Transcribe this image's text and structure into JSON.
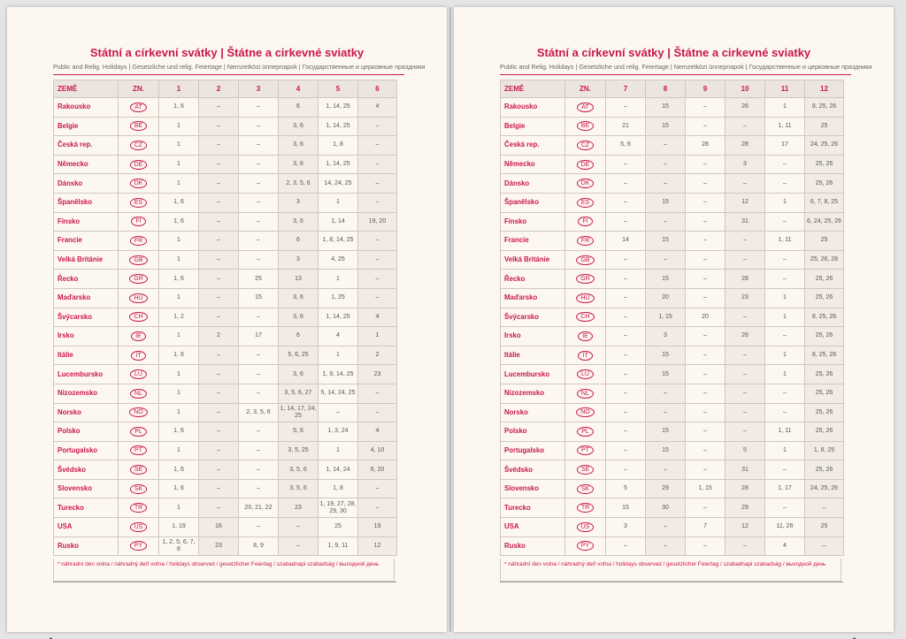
{
  "pages": [
    {
      "title": "Státní a církevní svátky | Štátne a cirkevné sviatky",
      "subtitle": "Public and Relig. Holidays | Gesetzliche und relig. Feiertage | Nemzetközi ünnepnapok | Государственные и церковные праздники",
      "table": {
        "header": [
          "ZEMĚ",
          "ZN.",
          "1",
          "2",
          "3",
          "4",
          "5",
          "6"
        ],
        "rows": [
          [
            "Rakousko",
            "AT",
            "1, 6",
            "–",
            "–",
            "6",
            "1, 14, 25",
            "4"
          ],
          [
            "Belgie",
            "BE",
            "1",
            "–",
            "–",
            "3, 6",
            "1, 14, 25",
            "–"
          ],
          [
            "Česká rep.",
            "CZ",
            "1",
            "–",
            "–",
            "3, 6",
            "1, 8",
            "–"
          ],
          [
            "Německo",
            "DE",
            "1",
            "–",
            "–",
            "3, 6",
            "1, 14, 25",
            "–"
          ],
          [
            "Dánsko",
            "DK",
            "1",
            "–",
            "–",
            "2, 3, 5, 6",
            "14, 24, 25",
            "–"
          ],
          [
            "Španělsko",
            "ES",
            "1, 6",
            "–",
            "–",
            "3",
            "1",
            "–"
          ],
          [
            "Finsko",
            "FI",
            "1, 6",
            "–",
            "–",
            "3, 6",
            "1, 14",
            "19, 20"
          ],
          [
            "Francie",
            "FR",
            "1",
            "–",
            "–",
            "6",
            "1, 8, 14, 25",
            "–"
          ],
          [
            "Velká Británie",
            "GB",
            "1",
            "–",
            "–",
            "3",
            "4, 25",
            "–"
          ],
          [
            "Řecko",
            "GR",
            "1, 6",
            "–",
            "25",
            "13",
            "1",
            "–"
          ],
          [
            "Maďarsko",
            "HU",
            "1",
            "–",
            "15",
            "3, 6",
            "1, 25",
            "–"
          ],
          [
            "Švýcarsko",
            "CH",
            "1, 2",
            "–",
            "–",
            "3, 6",
            "1, 14, 25",
            "4"
          ],
          [
            "Irsko",
            "IE",
            "1",
            "2",
            "17",
            "6",
            "4",
            "1"
          ],
          [
            "Itálie",
            "IT",
            "1, 6",
            "–",
            "–",
            "5, 6, 25",
            "1",
            "2"
          ],
          [
            "Lucembursko",
            "LU",
            "1",
            "–",
            "–",
            "3, 6",
            "1, 9, 14, 25",
            "23"
          ],
          [
            "Nizozemsko",
            "NL",
            "1",
            "–",
            "–",
            "3, 5, 6, 27",
            "5, 14, 24, 25",
            "–"
          ],
          [
            "Norsko",
            "NO",
            "1",
            "–",
            "2, 3, 5, 6",
            "1, 14, 17, 24, 25",
            "–",
            "–"
          ],
          [
            "Polsko",
            "PL",
            "1, 6",
            "–",
            "–",
            "5, 6",
            "1, 3, 24",
            "4"
          ],
          [
            "Portugalsko",
            "PT",
            "1",
            "–",
            "–",
            "3, 5, 25",
            "1",
            "4, 10"
          ],
          [
            "Švédsko",
            "SE",
            "1, 6",
            "–",
            "–",
            "3, 5, 6",
            "1, 14, 24",
            "6, 20"
          ],
          [
            "Slovensko",
            "SK",
            "1, 6",
            "–",
            "–",
            "3, 5, 6",
            "1, 8",
            "–"
          ],
          [
            "Turecko",
            "TR",
            "1",
            "–",
            "20, 21, 22",
            "23",
            "1, 19, 27, 28, 29, 30",
            "–"
          ],
          [
            "USA",
            "US",
            "1, 19",
            "16",
            "–",
            "–",
            "25",
            "19"
          ],
          [
            "Rusko",
            "PY",
            "1, 2, 5, 6, 7, 8",
            "23",
            "8, 9",
            "–",
            "1, 9, 11",
            "12"
          ]
        ]
      },
      "footnote": "* náhradní den volna / náhradný deň voľna / holidays observed / gesetzlicher Feiertag / szabadnapi szabadság / выходной день"
    },
    {
      "title": "Státní a církevní svátky | Štátne a cirkevné sviatky",
      "subtitle": "Public and Relig. Holidays | Gesetzliche und relig. Feiertage | Nemzetközi ünnepnapok | Государственные и церковные праздники",
      "table": {
        "header": [
          "ZEMĚ",
          "ZN.",
          "7",
          "8",
          "9",
          "10",
          "11",
          "12"
        ],
        "rows": [
          [
            "Rakousko",
            "AT",
            "–",
            "15",
            "–",
            "26",
            "1",
            "8, 25, 26"
          ],
          [
            "Belgie",
            "BE",
            "21",
            "15",
            "–",
            "–",
            "1, 11",
            "25"
          ],
          [
            "Česká rep.",
            "CZ",
            "5, 6",
            "–",
            "28",
            "28",
            "17",
            "24, 25, 26"
          ],
          [
            "Německo",
            "DE",
            "–",
            "–",
            "–",
            "3",
            "–",
            "25, 26"
          ],
          [
            "Dánsko",
            "DK",
            "–",
            "–",
            "–",
            "–",
            "–",
            "25, 26"
          ],
          [
            "Španělsko",
            "ES",
            "–",
            "15",
            "–",
            "12",
            "1",
            "6, 7, 8, 25"
          ],
          [
            "Finsko",
            "FI",
            "–",
            "–",
            "–",
            "31",
            "–",
            "6, 24, 25, 26"
          ],
          [
            "Francie",
            "FR",
            "14",
            "15",
            "–",
            "–",
            "1, 11",
            "25"
          ],
          [
            "Velká Británie",
            "GB",
            "–",
            "–",
            "–",
            "–",
            "–",
            "25, 26, 28"
          ],
          [
            "Řecko",
            "GR",
            "–",
            "15",
            "–",
            "28",
            "–",
            "25, 26"
          ],
          [
            "Maďarsko",
            "HU",
            "–",
            "20",
            "–",
            "23",
            "1",
            "25, 26"
          ],
          [
            "Švýcarsko",
            "CH",
            "–",
            "1, 15",
            "20",
            "–",
            "1",
            "8, 25, 26"
          ],
          [
            "Irsko",
            "IE",
            "–",
            "3",
            "–",
            "26",
            "–",
            "25, 26"
          ],
          [
            "Itálie",
            "IT",
            "–",
            "15",
            "–",
            "–",
            "1",
            "8, 25, 26"
          ],
          [
            "Lucembursko",
            "LU",
            "–",
            "15",
            "–",
            "–",
            "1",
            "25, 26"
          ],
          [
            "Nizozemsko",
            "NL",
            "–",
            "–",
            "–",
            "–",
            "–",
            "25, 26"
          ],
          [
            "Norsko",
            "NO",
            "–",
            "–",
            "–",
            "–",
            "–",
            "25, 26"
          ],
          [
            "Polsko",
            "PL",
            "–",
            "15",
            "–",
            "–",
            "1, 11",
            "25, 26"
          ],
          [
            "Portugalsko",
            "PT",
            "–",
            "15",
            "–",
            "5",
            "1",
            "1, 8, 25"
          ],
          [
            "Švédsko",
            "SE",
            "–",
            "–",
            "–",
            "31",
            "–",
            "25, 26"
          ],
          [
            "Slovensko",
            "SK",
            "5",
            "29",
            "1, 15",
            "28",
            "1, 17",
            "24, 25, 26"
          ],
          [
            "Turecko",
            "TR",
            "15",
            "30",
            "–",
            "29",
            "–",
            "–"
          ],
          [
            "USA",
            "US",
            "3",
            "–",
            "7",
            "12",
            "11, 26",
            "25"
          ],
          [
            "Rusko",
            "PY",
            "–",
            "–",
            "–",
            "–",
            "4",
            "–"
          ]
        ]
      },
      "footnote": "* náhradní den volna / náhradný deň voľna / holidays observed / gesetzlicher Feiertag / szabadnapi szabadság / выходной день"
    }
  ]
}
